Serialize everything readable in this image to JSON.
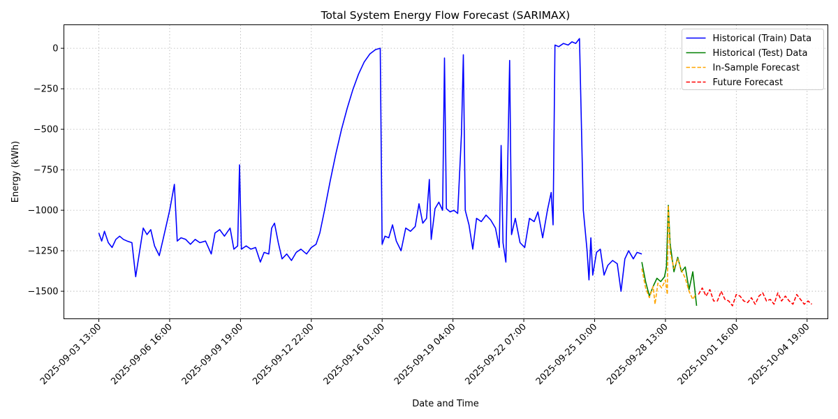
{
  "chart_data": {
    "type": "line",
    "title": "Total System Energy Flow Forecast (SARIMAX)",
    "xlabel": "Date and Time",
    "ylabel": "Energy (kWh)",
    "x_ticks": [
      "2025-09-03 13:00",
      "2025-09-06 16:00",
      "2025-09-09 19:00",
      "2025-09-12 22:00",
      "2025-09-16 01:00",
      "2025-09-19 04:00",
      "2025-09-22 07:00",
      "2025-09-25 10:00",
      "2025-09-28 13:00",
      "2025-10-01 16:00",
      "2025-10-04 19:00"
    ],
    "xlim": [
      "2025-09-02 00:00",
      "2025-10-05 17:00"
    ],
    "y_ticks": [
      0,
      -250,
      -500,
      -750,
      -1000,
      -1250,
      -1500
    ],
    "ylim": [
      -1670,
      145
    ],
    "grid": true,
    "legend_position": "top-right",
    "series": [
      {
        "name": "Historical (Train) Data",
        "color": "#0000ff",
        "style": "solid",
        "points": [
          [
            "2025-09-03 13:00",
            -1140
          ],
          [
            "2025-09-03 16:00",
            -1190
          ],
          [
            "2025-09-03 19:00",
            -1130
          ],
          [
            "2025-09-03 23:00",
            -1200
          ],
          [
            "2025-09-04 03:00",
            -1230
          ],
          [
            "2025-09-04 07:00",
            -1180
          ],
          [
            "2025-09-04 11:00",
            -1160
          ],
          [
            "2025-09-04 15:00",
            -1180
          ],
          [
            "2025-09-04 19:00",
            -1190
          ],
          [
            "2025-09-05 00:00",
            -1200
          ],
          [
            "2025-09-05 04:00",
            -1410
          ],
          [
            "2025-09-05 08:00",
            -1260
          ],
          [
            "2025-09-05 12:00",
            -1110
          ],
          [
            "2025-09-05 16:00",
            -1150
          ],
          [
            "2025-09-05 20:00",
            -1120
          ],
          [
            "2025-09-06 00:00",
            -1220
          ],
          [
            "2025-09-06 05:00",
            -1280
          ],
          [
            "2025-09-06 09:00",
            -1180
          ],
          [
            "2025-09-06 16:00",
            -1000
          ],
          [
            "2025-09-06 21:00",
            -840
          ],
          [
            "2025-09-07 00:00",
            -1190
          ],
          [
            "2025-09-07 04:00",
            -1170
          ],
          [
            "2025-09-07 09:00",
            -1180
          ],
          [
            "2025-09-07 14:00",
            -1210
          ],
          [
            "2025-09-07 19:00",
            -1180
          ],
          [
            "2025-09-08 00:00",
            -1200
          ],
          [
            "2025-09-08 06:00",
            -1190
          ],
          [
            "2025-09-08 12:00",
            -1270
          ],
          [
            "2025-09-08 16:00",
            -1140
          ],
          [
            "2025-09-08 21:00",
            -1120
          ],
          [
            "2025-09-09 02:00",
            -1160
          ],
          [
            "2025-09-09 08:00",
            -1110
          ],
          [
            "2025-09-09 12:00",
            -1240
          ],
          [
            "2025-09-09 16:00",
            -1220
          ],
          [
            "2025-09-09 18:00",
            -720
          ],
          [
            "2025-09-09 20:00",
            -1240
          ],
          [
            "2025-09-10 01:00",
            -1220
          ],
          [
            "2025-09-10 06:00",
            -1240
          ],
          [
            "2025-09-10 11:00",
            -1230
          ],
          [
            "2025-09-10 16:00",
            -1320
          ],
          [
            "2025-09-10 20:00",
            -1260
          ],
          [
            "2025-09-11 01:00",
            -1270
          ],
          [
            "2025-09-11 04:00",
            -1110
          ],
          [
            "2025-09-11 07:00",
            -1080
          ],
          [
            "2025-09-11 11:00",
            -1200
          ],
          [
            "2025-09-11 15:00",
            -1300
          ],
          [
            "2025-09-11 20:00",
            -1270
          ],
          [
            "2025-09-12 01:00",
            -1310
          ],
          [
            "2025-09-12 06:00",
            -1260
          ],
          [
            "2025-09-12 11:00",
            -1240
          ],
          [
            "2025-09-12 17:00",
            -1270
          ],
          [
            "2025-09-12 22:00",
            -1230
          ],
          [
            "2025-09-13 03:00",
            -1210
          ],
          [
            "2025-09-13 07:00",
            -1140
          ],
          [
            "2025-09-13 12:00",
            -1000
          ],
          [
            "2025-09-13 18:00",
            -820
          ],
          [
            "2025-09-14 00:00",
            -650
          ],
          [
            "2025-09-14 06:00",
            -500
          ],
          [
            "2025-09-14 12:00",
            -370
          ],
          [
            "2025-09-14 18:00",
            -255
          ],
          [
            "2025-09-15 00:00",
            -160
          ],
          [
            "2025-09-15 06:00",
            -85
          ],
          [
            "2025-09-15 12:00",
            -35
          ],
          [
            "2025-09-15 18:00",
            -8
          ],
          [
            "2025-09-15 23:00",
            0
          ],
          [
            "2025-09-16 01:00",
            -1210
          ],
          [
            "2025-09-16 04:00",
            -1160
          ],
          [
            "2025-09-16 08:00",
            -1170
          ],
          [
            "2025-09-16 12:00",
            -1090
          ],
          [
            "2025-09-16 16:00",
            -1190
          ],
          [
            "2025-09-16 21:00",
            -1250
          ],
          [
            "2025-09-17 02:00",
            -1110
          ],
          [
            "2025-09-17 07:00",
            -1130
          ],
          [
            "2025-09-17 12:00",
            -1100
          ],
          [
            "2025-09-17 16:00",
            -960
          ],
          [
            "2025-09-17 20:00",
            -1080
          ],
          [
            "2025-09-18 00:00",
            -1050
          ],
          [
            "2025-09-18 03:00",
            -810
          ],
          [
            "2025-09-18 05:00",
            -1180
          ],
          [
            "2025-09-18 09:00",
            -990
          ],
          [
            "2025-09-18 13:00",
            -950
          ],
          [
            "2025-09-18 17:00",
            -1000
          ],
          [
            "2025-09-18 19:00",
            -60
          ],
          [
            "2025-09-18 21:00",
            -990
          ],
          [
            "2025-09-19 01:00",
            -1010
          ],
          [
            "2025-09-19 05:00",
            -1000
          ],
          [
            "2025-09-19 09:00",
            -1020
          ],
          [
            "2025-09-19 13:00",
            -530
          ],
          [
            "2025-09-19 15:00",
            -40
          ],
          [
            "2025-09-19 17:00",
            -1000
          ],
          [
            "2025-09-19 21:00",
            -1090
          ],
          [
            "2025-09-20 01:00",
            -1240
          ],
          [
            "2025-09-20 05:00",
            -1050
          ],
          [
            "2025-09-20 10:00",
            -1070
          ],
          [
            "2025-09-20 15:00",
            -1030
          ],
          [
            "2025-09-20 20:00",
            -1060
          ],
          [
            "2025-09-21 01:00",
            -1110
          ],
          [
            "2025-09-21 05:00",
            -1230
          ],
          [
            "2025-09-21 07:00",
            -600
          ],
          [
            "2025-09-21 09:00",
            -1200
          ],
          [
            "2025-09-21 12:00",
            -1320
          ],
          [
            "2025-09-21 14:00",
            -700
          ],
          [
            "2025-09-21 16:00",
            -75
          ],
          [
            "2025-09-21 18:00",
            -1150
          ],
          [
            "2025-09-21 22:00",
            -1050
          ],
          [
            "2025-09-22 03:00",
            -1200
          ],
          [
            "2025-09-22 08:00",
            -1230
          ],
          [
            "2025-09-22 13:00",
            -1050
          ],
          [
            "2025-09-22 18:00",
            -1070
          ],
          [
            "2025-09-22 22:00",
            -1010
          ],
          [
            "2025-09-23 03:00",
            -1170
          ],
          [
            "2025-09-23 08:00",
            -1000
          ],
          [
            "2025-09-23 12:00",
            -890
          ],
          [
            "2025-09-23 14:00",
            -1090
          ],
          [
            "2025-09-23 16:00",
            20
          ],
          [
            "2025-09-23 20:00",
            10
          ],
          [
            "2025-09-24 01:00",
            30
          ],
          [
            "2025-09-24 06:00",
            20
          ],
          [
            "2025-09-24 10:00",
            40
          ],
          [
            "2025-09-24 14:00",
            30
          ],
          [
            "2025-09-24 18:00",
            60
          ],
          [
            "2025-09-24 22:00",
            -1000
          ],
          [
            "2025-09-25 02:00",
            -1250
          ],
          [
            "2025-09-25 04:00",
            -1430
          ],
          [
            "2025-09-25 06:00",
            -1170
          ],
          [
            "2025-09-25 08:00",
            -1400
          ],
          [
            "2025-09-25 12:00",
            -1260
          ],
          [
            "2025-09-25 16:00",
            -1240
          ],
          [
            "2025-09-25 20:00",
            -1400
          ],
          [
            "2025-09-26 00:00",
            -1340
          ],
          [
            "2025-09-26 05:00",
            -1310
          ],
          [
            "2025-09-26 10:00",
            -1330
          ],
          [
            "2025-09-26 14:00",
            -1500
          ],
          [
            "2025-09-26 18:00",
            -1300
          ],
          [
            "2025-09-26 22:00",
            -1250
          ],
          [
            "2025-09-27 03:00",
            -1300
          ],
          [
            "2025-09-27 07:00",
            -1260
          ],
          [
            "2025-09-27 12:00",
            -1270
          ]
        ]
      },
      {
        "name": "Historical (Test) Data",
        "color": "#008000",
        "style": "solid",
        "points": [
          [
            "2025-09-27 12:00",
            -1320
          ],
          [
            "2025-09-27 16:00",
            -1440
          ],
          [
            "2025-09-27 20:00",
            -1530
          ],
          [
            "2025-09-28 00:00",
            -1470
          ],
          [
            "2025-09-28 04:00",
            -1420
          ],
          [
            "2025-09-28 08:00",
            -1440
          ],
          [
            "2025-09-28 12:00",
            -1410
          ],
          [
            "2025-09-28 14:00",
            -1350
          ],
          [
            "2025-09-28 16:00",
            -970
          ],
          [
            "2025-09-28 18:00",
            -1210
          ],
          [
            "2025-09-28 22:00",
            -1380
          ],
          [
            "2025-09-29 02:00",
            -1290
          ],
          [
            "2025-09-29 06:00",
            -1380
          ],
          [
            "2025-09-29 10:00",
            -1350
          ],
          [
            "2025-09-29 14:00",
            -1490
          ],
          [
            "2025-09-29 18:00",
            -1380
          ],
          [
            "2025-09-29 22:00",
            -1590
          ]
        ]
      },
      {
        "name": "In-Sample Forecast",
        "color": "#ffa500",
        "style": "dashed",
        "points": [
          [
            "2025-09-27 12:00",
            -1360
          ],
          [
            "2025-09-27 16:00",
            -1480
          ],
          [
            "2025-09-27 20:00",
            -1540
          ],
          [
            "2025-09-28 00:00",
            -1470
          ],
          [
            "2025-09-28 02:00",
            -1580
          ],
          [
            "2025-09-28 05:00",
            -1450
          ],
          [
            "2025-09-28 09:00",
            -1480
          ],
          [
            "2025-09-28 13:00",
            -1430
          ],
          [
            "2025-09-28 15:00",
            -1520
          ],
          [
            "2025-09-28 16:00",
            -970
          ],
          [
            "2025-09-28 18:00",
            -1260
          ],
          [
            "2025-09-28 22:00",
            -1360
          ],
          [
            "2025-09-29 02:00",
            -1300
          ],
          [
            "2025-09-29 06:00",
            -1370
          ],
          [
            "2025-09-29 10:00",
            -1420
          ],
          [
            "2025-09-29 14:00",
            -1500
          ],
          [
            "2025-09-29 18:00",
            -1550
          ],
          [
            "2025-09-29 21:00",
            -1520
          ]
        ]
      },
      {
        "name": "Future Forecast",
        "color": "#ff0000",
        "style": "dashed",
        "points": [
          [
            "2025-09-30 00:00",
            -1520
          ],
          [
            "2025-09-30 04:00",
            -1480
          ],
          [
            "2025-09-30 08:00",
            -1530
          ],
          [
            "2025-09-30 12:00",
            -1490
          ],
          [
            "2025-09-30 16:00",
            -1560
          ],
          [
            "2025-09-30 20:00",
            -1560
          ],
          [
            "2025-10-01 00:00",
            -1500
          ],
          [
            "2025-10-01 04:00",
            -1550
          ],
          [
            "2025-10-01 08:00",
            -1560
          ],
          [
            "2025-10-01 12:00",
            -1590
          ],
          [
            "2025-10-01 16:00",
            -1520
          ],
          [
            "2025-10-01 20:00",
            -1530
          ],
          [
            "2025-10-02 00:00",
            -1560
          ],
          [
            "2025-10-02 04:00",
            -1570
          ],
          [
            "2025-10-02 08:00",
            -1540
          ],
          [
            "2025-10-02 12:00",
            -1580
          ],
          [
            "2025-10-02 16:00",
            -1530
          ],
          [
            "2025-10-02 20:00",
            -1510
          ],
          [
            "2025-10-03 00:00",
            -1560
          ],
          [
            "2025-10-03 04:00",
            -1550
          ],
          [
            "2025-10-03 08:00",
            -1580
          ],
          [
            "2025-10-03 12:00",
            -1510
          ],
          [
            "2025-10-03 16:00",
            -1560
          ],
          [
            "2025-10-03 20:00",
            -1530
          ],
          [
            "2025-10-04 00:00",
            -1560
          ],
          [
            "2025-10-04 04:00",
            -1580
          ],
          [
            "2025-10-04 08:00",
            -1520
          ],
          [
            "2025-10-04 12:00",
            -1550
          ],
          [
            "2025-10-04 16:00",
            -1580
          ],
          [
            "2025-10-04 20:00",
            -1560
          ],
          [
            "2025-10-05 00:00",
            -1580
          ]
        ]
      }
    ]
  }
}
